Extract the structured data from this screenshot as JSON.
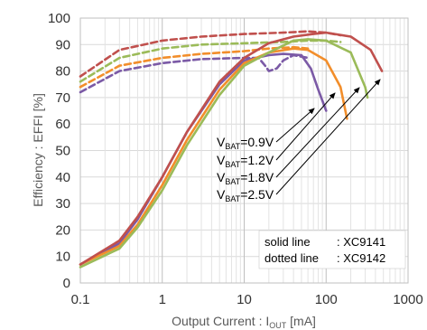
{
  "chart_data": {
    "type": "line",
    "xlabel": "Output Current : I",
    "xlabel_sub": "OUT",
    "xlabel_unit": " [mA]",
    "ylabel": "Efficiency : EFFI [%]",
    "x_scale": "log",
    "xlim": [
      0.1,
      1000
    ],
    "ylim": [
      0,
      100
    ],
    "x_ticks": [
      "0.1",
      "1",
      "10",
      "100",
      "1000"
    ],
    "y_ticks": [
      "0",
      "10",
      "20",
      "30",
      "40",
      "50",
      "60",
      "70",
      "80",
      "90",
      "100"
    ],
    "grid": true,
    "colors": {
      "v09": "#7b5aa6",
      "v12": "#f28e2b",
      "v18": "#9bbb59",
      "v25": "#c0504d"
    },
    "series_labels": [
      {
        "prefix": "V",
        "sub": "BAT",
        "value": "=0.9V",
        "color_key": "v09"
      },
      {
        "prefix": "V",
        "sub": "BAT",
        "value": "=1.2V",
        "color_key": "v12"
      },
      {
        "prefix": "V",
        "sub": "BAT",
        "value": "=1.8V",
        "color_key": "v18"
      },
      {
        "prefix": "V",
        "sub": "BAT",
        "value": "=2.5V",
        "color_key": "v25"
      }
    ],
    "note": {
      "line1_a": "solid line",
      "line1_b": ": XC9141",
      "line2_a": "dotted line",
      "line2_b": ": XC9142"
    },
    "series": [
      {
        "key": "v09",
        "style": "solid",
        "x": [
          0.1,
          0.3,
          0.5,
          1,
          2,
          5,
          10,
          20,
          30,
          50,
          65,
          80,
          100
        ],
        "y": [
          7,
          15,
          24,
          40,
          57,
          75,
          84,
          86,
          86.5,
          86,
          81,
          73,
          65
        ]
      },
      {
        "key": "v12",
        "style": "solid",
        "x": [
          0.1,
          0.3,
          0.5,
          1,
          2,
          5,
          10,
          20,
          40,
          60,
          100,
          150,
          180
        ],
        "y": [
          7,
          14,
          22,
          37,
          54,
          73,
          83,
          87,
          88.5,
          88,
          84,
          74,
          62
        ]
      },
      {
        "key": "v18",
        "style": "solid",
        "x": [
          0.1,
          0.3,
          0.5,
          1,
          2,
          5,
          10,
          20,
          40,
          60,
          100,
          200,
          300,
          320
        ],
        "y": [
          6,
          13,
          21,
          35,
          52,
          71,
          82,
          87,
          91.5,
          92,
          91.5,
          87,
          74,
          70
        ]
      },
      {
        "key": "v25",
        "style": "solid",
        "x": [
          0.1,
          0.3,
          0.5,
          1,
          2,
          5,
          10,
          20,
          40,
          70,
          100,
          200,
          350,
          480
        ],
        "y": [
          7,
          16,
          25,
          40,
          57,
          76,
          85,
          90.5,
          93,
          94,
          94.5,
          93,
          88,
          80
        ]
      },
      {
        "key": "v09",
        "style": "dashed",
        "x": [
          0.1,
          0.3,
          1,
          3,
          10,
          15,
          18,
          20,
          25,
          30,
          40,
          60
        ],
        "y": [
          72,
          80,
          83,
          84.5,
          85,
          85,
          82,
          80,
          81,
          84,
          86,
          85
        ]
      },
      {
        "key": "v12",
        "style": "dashed",
        "x": [
          0.1,
          0.3,
          1,
          3,
          10,
          20,
          40,
          60
        ],
        "y": [
          74,
          82,
          85,
          86.5,
          87.5,
          88.5,
          89,
          88.5
        ]
      },
      {
        "key": "v18",
        "style": "dashed",
        "x": [
          0.1,
          0.3,
          1,
          3,
          10,
          30,
          60,
          100,
          150
        ],
        "y": [
          76,
          85,
          88.5,
          90,
          90.5,
          91,
          91.5,
          91.5,
          91
        ]
      },
      {
        "key": "v25",
        "style": "dashed",
        "x": [
          0.1,
          0.3,
          1,
          3,
          10,
          30,
          60,
          100,
          150
        ],
        "y": [
          78,
          88,
          91.5,
          93,
          94,
          94.5,
          95,
          94.5,
          93.5
        ]
      }
    ]
  }
}
